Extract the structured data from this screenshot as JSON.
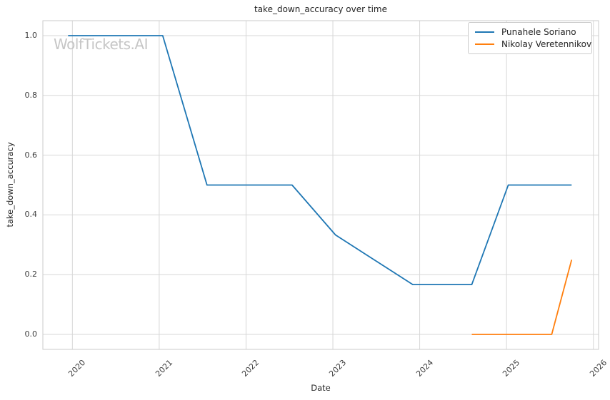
{
  "figure": {
    "watermark": "WolfTickets.AI"
  },
  "chart_data": {
    "type": "line",
    "title": "take_down_accuracy over time",
    "xlabel": "Date",
    "ylabel": "take_down_accuracy",
    "x_unit": "year",
    "xlim": [
      2019.66,
      2026.06
    ],
    "ylim": [
      -0.05,
      1.05
    ],
    "x_ticks": [
      2020,
      2021,
      2022,
      2023,
      2024,
      2025,
      2026
    ],
    "x_tick_labels": [
      "2020",
      "2021",
      "2022",
      "2023",
      "2024",
      "2025",
      "2026"
    ],
    "y_ticks": [
      0.0,
      0.2,
      0.4,
      0.6,
      0.8,
      1.0
    ],
    "y_tick_labels": [
      "0.0",
      "0.2",
      "0.4",
      "0.6",
      "0.8",
      "1.0"
    ],
    "grid": true,
    "legend": {
      "position": "upper-right"
    },
    "series": [
      {
        "name": "Punahele Soriano",
        "color": "#1f77b4",
        "points": [
          [
            2019.95,
            1.0
          ],
          [
            2021.04,
            1.0
          ],
          [
            2021.55,
            0.5
          ],
          [
            2022.53,
            0.5
          ],
          [
            2023.03,
            0.333
          ],
          [
            2023.92,
            0.167
          ],
          [
            2024.6,
            0.167
          ],
          [
            2025.02,
            0.5
          ],
          [
            2025.75,
            0.5
          ]
        ]
      },
      {
        "name": "Nikolay Veretennikov",
        "color": "#ff7f0e",
        "points": [
          [
            2024.6,
            0.0
          ],
          [
            2025.52,
            0.0
          ],
          [
            2025.75,
            0.25
          ]
        ]
      }
    ]
  },
  "style": {
    "background": "#ffffff",
    "grid_color": "#d7d7d7",
    "spine_color": "#cbcbcb",
    "text_color": "#262626",
    "tick_color": "#3d3d3d",
    "watermark_color": "#c6c6c6"
  }
}
